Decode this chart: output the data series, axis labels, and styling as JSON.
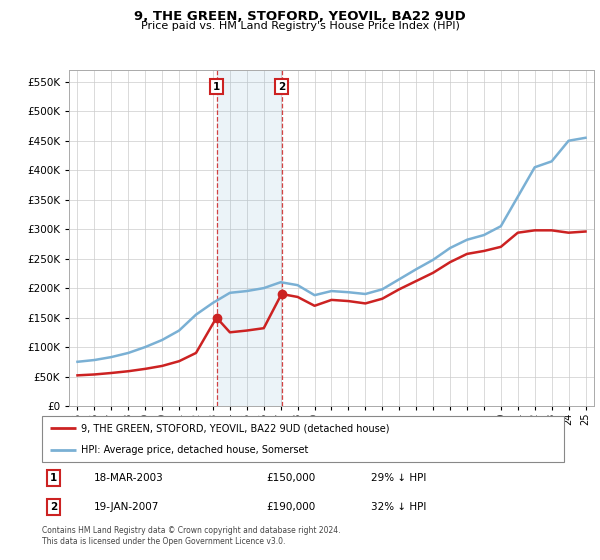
{
  "title": "9, THE GREEN, STOFORD, YEOVIL, BA22 9UD",
  "subtitle": "Price paid vs. HM Land Registry's House Price Index (HPI)",
  "ytick_values": [
    0,
    50000,
    100000,
    150000,
    200000,
    250000,
    300000,
    350000,
    400000,
    450000,
    500000,
    550000
  ],
  "xlim": [
    1994.5,
    2025.5
  ],
  "ylim": [
    0,
    570000
  ],
  "hpi_color": "#7ab0d4",
  "property_color": "#cc2222",
  "transaction1_date": "18-MAR-2003",
  "transaction1_price": 150000,
  "transaction1_pct": "29% ↓ HPI",
  "transaction1_year": 2003.21,
  "transaction2_date": "19-JAN-2007",
  "transaction2_price": 190000,
  "transaction2_pct": "32% ↓ HPI",
  "transaction2_year": 2007.05,
  "legend_label_property": "9, THE GREEN, STOFORD, YEOVIL, BA22 9UD (detached house)",
  "legend_label_hpi": "HPI: Average price, detached house, Somerset",
  "footer": "Contains HM Land Registry data © Crown copyright and database right 2024.\nThis data is licensed under the Open Government Licence v3.0.",
  "hpi_data": [
    [
      1995,
      75000
    ],
    [
      1996,
      78000
    ],
    [
      1997,
      83000
    ],
    [
      1998,
      90000
    ],
    [
      1999,
      100000
    ],
    [
      2000,
      112000
    ],
    [
      2001,
      128000
    ],
    [
      2002,
      155000
    ],
    [
      2003,
      175000
    ],
    [
      2004,
      192000
    ],
    [
      2005,
      195000
    ],
    [
      2006,
      200000
    ],
    [
      2007,
      210000
    ],
    [
      2008,
      205000
    ],
    [
      2009,
      188000
    ],
    [
      2010,
      195000
    ],
    [
      2011,
      193000
    ],
    [
      2012,
      190000
    ],
    [
      2013,
      198000
    ],
    [
      2014,
      215000
    ],
    [
      2015,
      232000
    ],
    [
      2016,
      248000
    ],
    [
      2017,
      268000
    ],
    [
      2018,
      282000
    ],
    [
      2019,
      290000
    ],
    [
      2020,
      305000
    ],
    [
      2021,
      355000
    ],
    [
      2022,
      405000
    ],
    [
      2023,
      415000
    ],
    [
      2024,
      450000
    ],
    [
      2025,
      455000
    ]
  ],
  "property_data": [
    [
      1995,
      52000
    ],
    [
      1996,
      53500
    ],
    [
      1997,
      56000
    ],
    [
      1998,
      59000
    ],
    [
      1999,
      63000
    ],
    [
      2000,
      68000
    ],
    [
      2001,
      76000
    ],
    [
      2002,
      90000
    ],
    [
      2003.21,
      150000
    ],
    [
      2004,
      125000
    ],
    [
      2005,
      128000
    ],
    [
      2006,
      132000
    ],
    [
      2007.05,
      190000
    ],
    [
      2008,
      185000
    ],
    [
      2009,
      170000
    ],
    [
      2010,
      180000
    ],
    [
      2011,
      178000
    ],
    [
      2012,
      174000
    ],
    [
      2013,
      182000
    ],
    [
      2014,
      198000
    ],
    [
      2015,
      212000
    ],
    [
      2016,
      226000
    ],
    [
      2017,
      244000
    ],
    [
      2018,
      258000
    ],
    [
      2019,
      263000
    ],
    [
      2020,
      270000
    ],
    [
      2021,
      294000
    ],
    [
      2022,
      298000
    ],
    [
      2023,
      298000
    ],
    [
      2024,
      294000
    ],
    [
      2025,
      296000
    ]
  ],
  "shade_x1": 2003.21,
  "shade_x2": 2007.05,
  "background_color": "#ffffff",
  "grid_color": "#cccccc"
}
